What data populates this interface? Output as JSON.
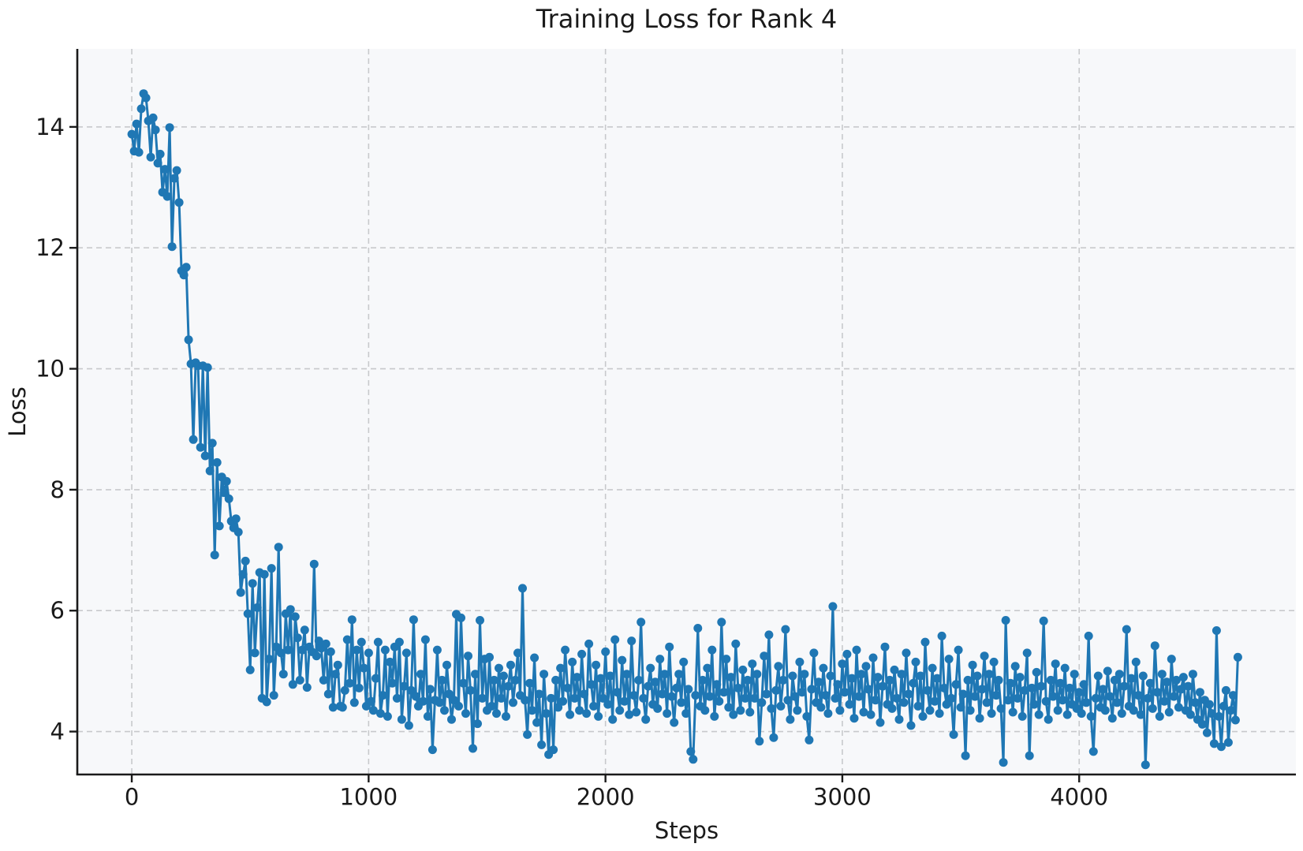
{
  "figure": {
    "title": "Training Loss for Rank 4",
    "xlabel": "Steps",
    "ylabel": "Loss"
  },
  "colors": {
    "line": "#1f77b4",
    "marker": "#1f77b4",
    "plot_background": "#f7f8fa",
    "grid": "#c8c9cc",
    "spine": "#1a1a1a",
    "text": "#1a1a1a"
  },
  "chart_data": {
    "type": "line",
    "title": "Training Loss for Rank 4",
    "xlabel": "Steps",
    "ylabel": "Loss",
    "marker": "circle",
    "grid": "dashed",
    "legend": "none",
    "xlim": [
      -230,
      4915
    ],
    "ylim": [
      3.29,
      15.29
    ],
    "x_ticks": [
      0,
      1000,
      2000,
      3000,
      4000
    ],
    "y_ticks": [
      4,
      6,
      8,
      10,
      12,
      14
    ],
    "x_start": 0,
    "x_interval": 10,
    "values": [
      13.88,
      13.6,
      14.05,
      13.58,
      14.3,
      14.55,
      14.48,
      14.1,
      13.5,
      14.15,
      13.95,
      13.4,
      13.55,
      12.92,
      13.3,
      12.85,
      13.99,
      12.02,
      13.15,
      13.28,
      12.75,
      11.62,
      11.55,
      11.68,
      10.48,
      10.08,
      8.83,
      10.1,
      10.05,
      8.7,
      10.05,
      8.56,
      10.02,
      8.31,
      8.77,
      6.92,
      8.45,
      7.4,
      8.21,
      7.95,
      8.14,
      7.85,
      7.48,
      7.37,
      7.52,
      7.3,
      6.3,
      6.6,
      6.82,
      5.95,
      5.02,
      6.45,
      5.3,
      6.05,
      6.63,
      4.55,
      6.6,
      4.49,
      5.2,
      6.7,
      4.6,
      5.4,
      7.05,
      5.3,
      4.95,
      5.95,
      5.35,
      6.02,
      4.78,
      5.9,
      5.55,
      4.85,
      5.35,
      5.68,
      4.73,
      5.4,
      5.32,
      6.77,
      5.25,
      5.5,
      5.38,
      4.85,
      5.45,
      4.62,
      5.32,
      4.4,
      4.95,
      5.1,
      4.42,
      4.4,
      4.68,
      5.52,
      4.8,
      5.85,
      4.48,
      5.35,
      4.72,
      5.48,
      5.05,
      4.42,
      5.3,
      4.5,
      4.35,
      4.88,
      5.48,
      4.3,
      4.6,
      5.35,
      4.25,
      5.15,
      4.8,
      5.4,
      4.55,
      5.48,
      4.2,
      4.75,
      5.3,
      4.1,
      4.68,
      5.85,
      4.58,
      4.42,
      4.95,
      4.5,
      5.52,
      4.25,
      4.7,
      3.7,
      4.52,
      5.35,
      4.48,
      4.85,
      4.35,
      5.1,
      4.62,
      4.2,
      4.52,
      5.94,
      4.42,
      5.88,
      4.8,
      4.3,
      5.25,
      4.68,
      3.72,
      4.95,
      4.13,
      5.84,
      4.55,
      5.2,
      4.35,
      5.23,
      4.42,
      4.85,
      4.3,
      5.05,
      4.55,
      4.92,
      4.25,
      4.75,
      5.1,
      4.48,
      4.85,
      5.3,
      4.6,
      6.37,
      4.52,
      3.95,
      4.8,
      4.35,
      5.22,
      4.15,
      4.62,
      3.78,
      4.95,
      4.3,
      3.62,
      4.55,
      3.7,
      4.85,
      4.4,
      5.05,
      4.5,
      5.35,
      4.72,
      4.28,
      5.15,
      4.55,
      4.9,
      4.35,
      5.28,
      4.62,
      4.3,
      5.45,
      4.78,
      4.42,
      5.1,
      4.25,
      4.88,
      4.55,
      5.32,
      4.45,
      4.92,
      4.2,
      5.52,
      4.65,
      4.35,
      5.18,
      4.5,
      4.95,
      4.28,
      5.5,
      4.6,
      4.32,
      4.85,
      5.81,
      4.55,
      4.2,
      4.75,
      5.05,
      4.45,
      4.82,
      4.38,
      5.2,
      4.62,
      4.95,
      4.3,
      5.4,
      4.58,
      4.15,
      4.72,
      4.95,
      4.48,
      5.15,
      4.3,
      4.7,
      3.67,
      3.54,
      4.6,
      5.71,
      4.42,
      4.85,
      4.35,
      5.05,
      4.58,
      5.35,
      4.25,
      4.78,
      4.5,
      5.81,
      4.65,
      5.2,
      4.4,
      4.9,
      4.28,
      5.45,
      4.72,
      4.35,
      5.02,
      4.55,
      4.85,
      4.32,
      5.12,
      4.55,
      4.95,
      3.84,
      4.48,
      5.25,
      4.62,
      5.6,
      4.38,
      3.9,
      4.68,
      5.08,
      4.42,
      4.85,
      5.69,
      4.52,
      4.2,
      4.92,
      4.58,
      4.35,
      5.15,
      4.65,
      4.95,
      4.25,
      3.86,
      4.7,
      5.3,
      4.48,
      4.82,
      4.4,
      5.05,
      4.6,
      4.3,
      4.92,
      6.07,
      4.55,
      4.78,
      4.35,
      5.12,
      4.65,
      5.28,
      4.45,
      4.88,
      4.22,
      5.35,
      4.58,
      4.95,
      4.32,
      5.08,
      4.7,
      4.28,
      5.22,
      4.52,
      4.9,
      4.15,
      4.75,
      5.4,
      4.45,
      4.85,
      4.38,
      5.02,
      4.55,
      4.2,
      4.95,
      4.48,
      5.3,
      4.62,
      4.1,
      4.8,
      5.15,
      4.42,
      4.92,
      4.25,
      5.48,
      4.68,
      4.35,
      5.05,
      4.5,
      4.88,
      4.3,
      5.58,
      4.72,
      4.45,
      5.2,
      4.55,
      3.95,
      4.78,
      5.35,
      4.4,
      4.62,
      3.6,
      4.85,
      4.35,
      5.1,
      4.58,
      4.92,
      4.22,
      4.7,
      5.25,
      4.48,
      4.95,
      4.3,
      5.15,
      4.6,
      4.85,
      4.38,
      3.49,
      5.84,
      4.52,
      4.8,
      4.32,
      5.08,
      4.55,
      4.9,
      4.25,
      4.68,
      5.3,
      3.6,
      4.72,
      4.45,
      4.98,
      4.28,
      4.75,
      5.83,
      4.5,
      4.2,
      4.85,
      4.58,
      5.12,
      4.35,
      4.8,
      4.52,
      5.05,
      4.28,
      4.72,
      4.45,
      4.95,
      4.38,
      4.65,
      4.3,
      4.78,
      4.48,
      5.58,
      4.25,
      3.67,
      4.55,
      4.92,
      4.4,
      4.7,
      4.35,
      5.0,
      4.58,
      4.22,
      4.85,
      4.48,
      4.95,
      4.3,
      4.75,
      5.69,
      4.42,
      4.88,
      4.35,
      5.15,
      4.6,
      4.28,
      4.92,
      3.45,
      4.55,
      4.8,
      4.38,
      5.42,
      4.65,
      4.25,
      4.95,
      4.5,
      4.82,
      4.32,
      5.2,
      4.58,
      4.85,
      4.4,
      4.7,
      4.9,
      4.35,
      4.75,
      4.28,
      4.95,
      4.48,
      4.2,
      4.65,
      4.12,
      4.52,
      3.98,
      4.45,
      4.3,
      3.8,
      5.67,
      4.25,
      3.75,
      4.42,
      4.68,
      3.82,
      4.35,
      4.6,
      4.19,
      5.23
    ]
  }
}
